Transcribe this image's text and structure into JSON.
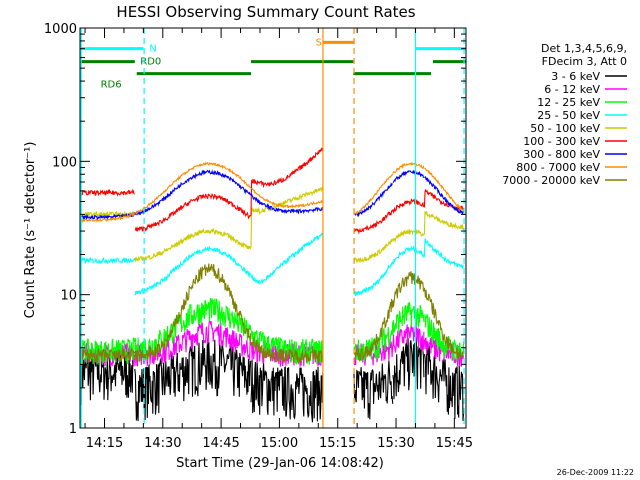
{
  "chart_data": {
    "type": "line",
    "title": "HESSI Observing Summary Count Rates",
    "xlabel": "Start Time (29-Jan-06 14:08:42)",
    "ylabel": "Count Rate (s⁻¹ detector⁻¹)",
    "ylog": true,
    "ylim": [
      1,
      1000
    ],
    "xlim_minutes": [
      8.7,
      108
    ],
    "x_tick_labels": [
      "14:15",
      "14:30",
      "14:45",
      "15:00",
      "15:15",
      "15:30",
      "15:45"
    ],
    "x_tick_minutes": [
      15,
      30,
      45,
      60,
      75,
      90,
      105
    ],
    "y_tick_labels": [
      "1",
      "10",
      "100",
      "1000"
    ],
    "y_tick_values": [
      1,
      10,
      100,
      1000
    ],
    "legend_header": [
      "Det 1,3,4,5,6,9,",
      "FDecim 3, Att 0"
    ],
    "series": [
      {
        "name": "3 - 6 keV",
        "color": "#000000"
      },
      {
        "name": "6 - 12 keV",
        "color": "#ff00ff"
      },
      {
        "name": "12 - 25 keV",
        "color": "#00ff00"
      },
      {
        "name": "25 - 50 keV",
        "color": "#00ffff"
      },
      {
        "name": "50 - 100 keV",
        "color": "#cccc00"
      },
      {
        "name": "100 - 300 keV",
        "color": "#ff0000"
      },
      {
        "name": "300 - 800 keV",
        "color": "#0000ff"
      },
      {
        "name": "800 - 7000 keV",
        "color": "#ff8c00"
      },
      {
        "name": "7000 - 20000 keV",
        "color": "#808000"
      }
    ],
    "segments": [
      [
        9,
        22.8
      ],
      [
        22.8,
        52.7
      ],
      [
        52.7,
        71.2
      ],
      [
        79.2,
        89.2
      ],
      [
        89.2,
        97.3
      ],
      [
        97.3,
        107.5
      ]
    ],
    "bands": [
      {
        "label": "N",
        "color": "#00ffff",
        "y": 700,
        "ranges": [
          [
            9,
            25
          ]
        ],
        "label_at": 26.5
      },
      {
        "label": "RD0",
        "color": "#008000",
        "y": 560,
        "ranges": [
          [
            9,
            22.8
          ]
        ],
        "label_at": 24.2
      },
      {
        "label": "RD6",
        "color": "#008000",
        "y": 455,
        "ranges": [
          [
            23.3,
            52.7
          ]
        ],
        "label_at": 14
      },
      {
        "label": "",
        "color": "#008000",
        "y": 560,
        "ranges": [
          [
            52.7,
            79
          ]
        ]
      },
      {
        "label": "",
        "color": "#008000",
        "y": 455,
        "ranges": [
          [
            79,
            99
          ]
        ]
      },
      {
        "label": "",
        "color": "#008000",
        "y": 560,
        "ranges": [
          [
            99.5,
            108
          ]
        ]
      },
      {
        "label": "",
        "color": "#00ffff",
        "y": 700,
        "ranges": [
          [
            95,
            108
          ]
        ]
      },
      {
        "label": "S",
        "color": "#ff8c00",
        "y": 780,
        "ranges": [
          [
            71.2,
            79.2
          ]
        ],
        "label_at": 69.3
      }
    ],
    "vlines": [
      {
        "x": 9,
        "color": "#00ffff",
        "style": "solid"
      },
      {
        "x": 25.2,
        "color": "#00ffff",
        "style": "dashed"
      },
      {
        "x": 71.2,
        "color": "#ff8c00",
        "style": "solid"
      },
      {
        "x": 79.2,
        "color": "#ff8c00",
        "style": "dashed"
      },
      {
        "x": 95,
        "color": "#00ffff",
        "style": "solid"
      },
      {
        "x": 107.5,
        "color": "#00ffff",
        "style": "dashed"
      }
    ]
  },
  "footer_date": "26-Dec-2009 11:22"
}
